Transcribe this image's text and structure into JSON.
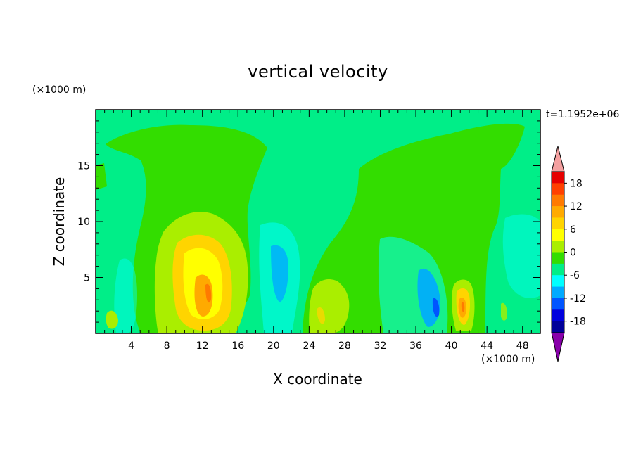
{
  "chart_data": {
    "type": "heatmap",
    "title": "vertical velocity",
    "xlabel": "X coordinate",
    "ylabel": "Z coordinate",
    "x_unit": "(×1000 m)",
    "y_unit": "(×1000 m)",
    "time_label": "t=1.1952e+06",
    "xlim": [
      0,
      50
    ],
    "ylim": [
      0,
      20
    ],
    "x_ticks": [
      4,
      8,
      12,
      16,
      20,
      24,
      28,
      32,
      36,
      40,
      44,
      48
    ],
    "y_ticks": [
      5,
      10,
      15
    ],
    "colorbar": {
      "levels": [
        -21,
        -18,
        -15,
        -12,
        -9,
        -6,
        -3,
        0,
        3,
        6,
        9,
        12,
        15,
        18,
        21
      ],
      "tick_labels": [
        "18",
        "12",
        "6",
        "0",
        "-6",
        "-12",
        "-18"
      ],
      "tick_values": [
        18,
        12,
        6,
        0,
        -6,
        -12,
        -18
      ],
      "colors": {
        "above_max": "#f4a0a0",
        "below_min": "#8800aa",
        "bands_top_to_bottom": [
          "#e60000",
          "#ff4000",
          "#ff7a00",
          "#ffaa00",
          "#ffd400",
          "#ffff00",
          "#aaee00",
          "#33dd00",
          "#00ee88",
          "#00ffff",
          "#00aaff",
          "#0055ff",
          "#0000dd",
          "#000099"
        ]
      }
    },
    "field_features": [
      {
        "x": 12.3,
        "z": 4.0,
        "w": 12
      },
      {
        "x": 41.0,
        "z": 2.5,
        "w": 10
      },
      {
        "x": 25.5,
        "z": 2.0,
        "w": 4
      },
      {
        "x": 38.0,
        "z": 2.5,
        "w": -9
      },
      {
        "x": 20.0,
        "z": 6.0,
        "w": -5
      },
      {
        "x": 35.0,
        "z": 4.0,
        "w": -5
      }
    ]
  }
}
